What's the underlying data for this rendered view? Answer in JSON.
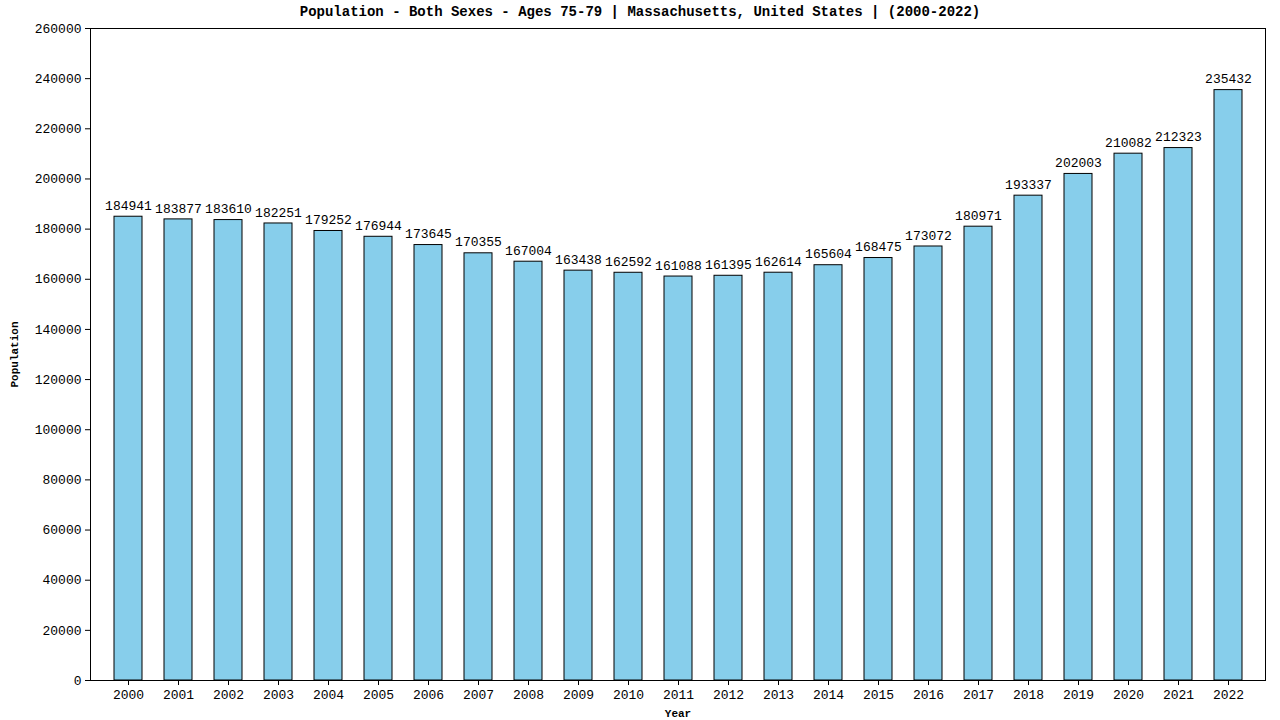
{
  "chart_data": {
    "type": "bar",
    "title": "Population - Both Sexes - Ages 75-79 | Massachusetts, United States |  (2000-2022)",
    "x_label": "Year",
    "y_label": "Population",
    "categories": [
      "2000",
      "2001",
      "2002",
      "2003",
      "2004",
      "2005",
      "2006",
      "2007",
      "2008",
      "2009",
      "2010",
      "2011",
      "2012",
      "2013",
      "2014",
      "2015",
      "2016",
      "2017",
      "2018",
      "2019",
      "2020",
      "2021",
      "2022"
    ],
    "values": [
      184941,
      183877,
      183610,
      182251,
      179252,
      176944,
      173645,
      170355,
      167004,
      163438,
      162592,
      161088,
      161395,
      162614,
      165604,
      168475,
      173072,
      180971,
      193337,
      202003,
      210082,
      212323,
      235432
    ],
    "color": "#87ceeb",
    "ylim": [
      0,
      260000
    ],
    "yticks": [
      0,
      20000,
      40000,
      60000,
      80000,
      100000,
      120000,
      140000,
      160000,
      180000,
      200000,
      220000,
      240000,
      260000
    ],
    "grid": false,
    "data_labels": true
  }
}
